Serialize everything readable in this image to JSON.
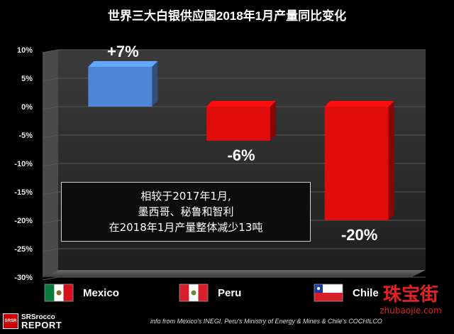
{
  "chart_data": {
    "type": "bar",
    "title": "世界三大白银供应国2018年1月产量同比变化",
    "categories": [
      "Mexico",
      "Peru",
      "Chile"
    ],
    "values": [
      7,
      -6,
      -20
    ],
    "data_labels": [
      "+7%",
      "-6%",
      "-20%"
    ],
    "bar_colors": [
      "#4f86d6",
      "#e00b0b",
      "#e00b0b"
    ],
    "ylim": [
      -30,
      10
    ],
    "yticks": [
      "10%",
      "5%",
      "0%",
      "-5%",
      "-10%",
      "-15%",
      "-20%",
      "-25%",
      "-30%"
    ],
    "grid": true,
    "legend": "bottom"
  },
  "note": {
    "line1": "相较于2017年1月,",
    "line2": "墨西哥、秘鲁和智利",
    "line3": "在2018年1月产量整体减少13吨"
  },
  "flags": [
    "mexico-flag-icon",
    "peru-flag-icon",
    "chile-flag-icon"
  ],
  "logo": {
    "box": "SRSR",
    "line1": "SRSrocco",
    "line2": "REPORT"
  },
  "source": "info from Mexico's INEGI, Peru's Ministry of Energy & Mines & Chile's COCHILCO",
  "watermark": {
    "main": "珠宝街",
    "sub": "zhubaojie.com"
  }
}
